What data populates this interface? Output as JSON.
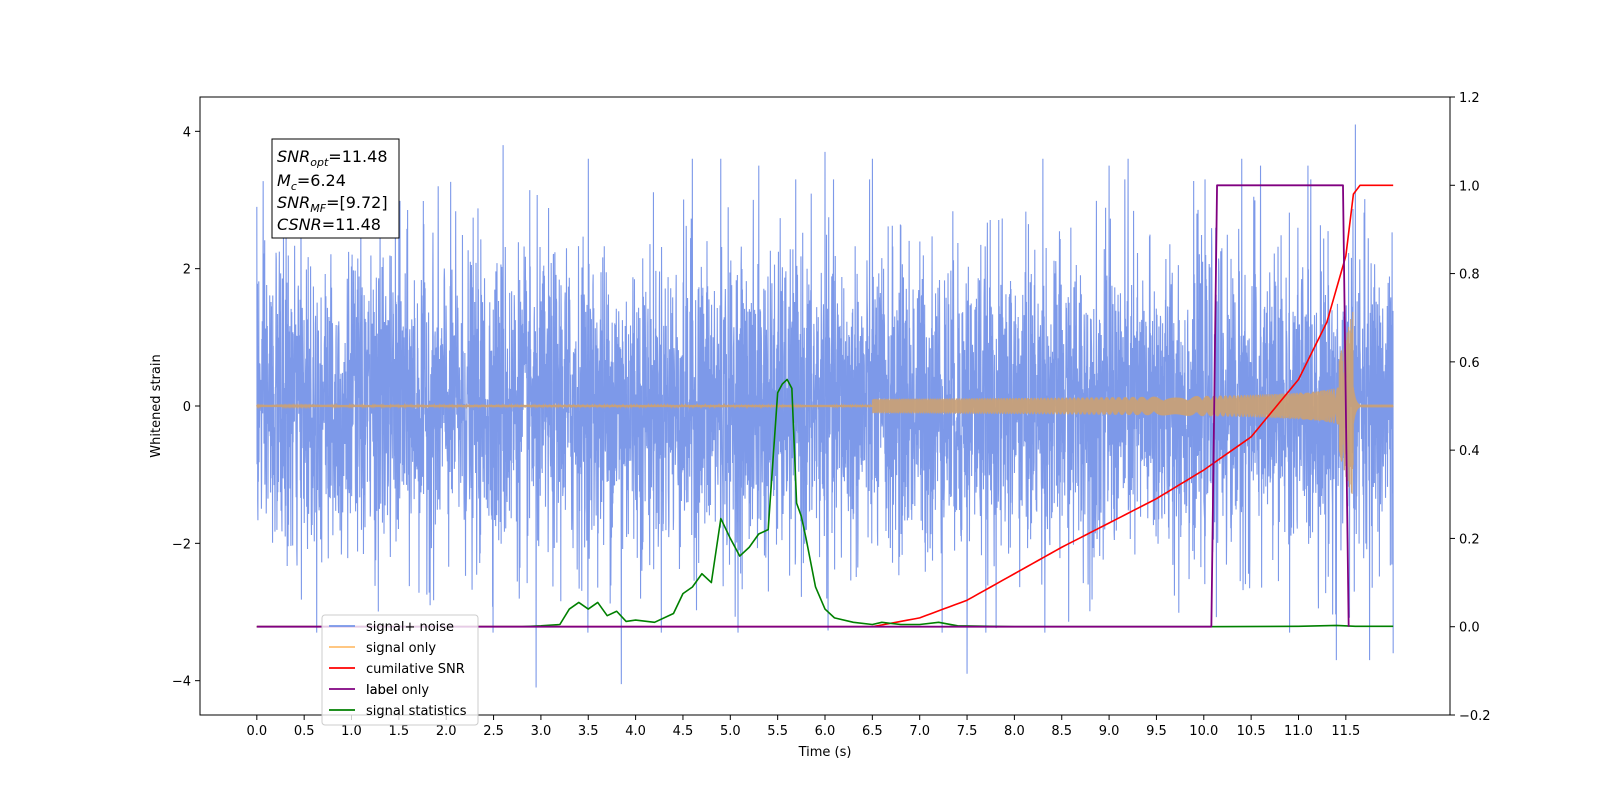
{
  "chart_data": {
    "type": "line",
    "xlabel": "Time (s)",
    "ylabel": "Whitened strain",
    "xlim": [
      -0.6,
      12.6
    ],
    "ylim": [
      -4.5,
      4.5
    ],
    "y2lim": [
      -0.2,
      1.2
    ],
    "x_ticks": [
      "0.0",
      "0.5",
      "1.0",
      "1.5",
      "2.0",
      "2.5",
      "3.0",
      "3.5",
      "4.0",
      "4.5",
      "5.0",
      "5.5",
      "6.0",
      "6.5",
      "7.0",
      "7.5",
      "8.0",
      "8.5",
      "9.0",
      "9.5",
      "10.0",
      "10.5",
      "11.0",
      "11.5"
    ],
    "y_ticks": [
      "−4",
      "−2",
      "0",
      "2",
      "4"
    ],
    "y2_ticks": [
      "−0.2",
      "0.0",
      "0.2",
      "0.4",
      "0.6",
      "0.8",
      "1.0",
      "1.2"
    ],
    "annotation": {
      "snr_opt": "=11.48",
      "mc": "=6.24",
      "snr_mf": "=[9.72]",
      "csnr": "=11.48"
    },
    "legend": {
      "placement": "lower-left",
      "entries": [
        "signal+ noise",
        "signal only",
        "cumilative SNR",
        "label",
        "signal statistics"
      ],
      "overlapped_text": "label only"
    },
    "series": [
      {
        "name": "signal+ noise",
        "axis": "left",
        "color": "#7694e8",
        "x_range": [
          0,
          12
        ],
        "noise_std": 1.0,
        "spikes": [
          [
            0.0,
            2.9
          ],
          [
            1.5,
            3.0
          ],
          [
            2.6,
            3.8
          ],
          [
            2.95,
            -4.1
          ],
          [
            3.5,
            3.6
          ],
          [
            3.85,
            -4.05
          ],
          [
            4.6,
            3.6
          ],
          [
            4.9,
            3.6
          ],
          [
            5.3,
            3.5
          ],
          [
            6.0,
            3.7
          ],
          [
            6.5,
            3.6
          ],
          [
            7.5,
            3.6
          ],
          [
            7.5,
            -3.9
          ],
          [
            8.3,
            3.6
          ],
          [
            9.0,
            3.5
          ],
          [
            9.2,
            3.6
          ],
          [
            10.4,
            3.6
          ],
          [
            10.6,
            3.5
          ],
          [
            11.1,
            3.5
          ],
          [
            11.4,
            -3.7
          ],
          [
            11.6,
            4.1
          ],
          [
            11.75,
            3.9
          ],
          [
            11.75,
            -3.7
          ],
          [
            12.0,
            -3.6
          ]
        ]
      },
      {
        "name": "signal only",
        "axis": "left",
        "color": "#c8a078",
        "chirp_start": 6.5,
        "merger": 11.58,
        "peak_amplitude": 1.4
      },
      {
        "name": "cumilative SNR",
        "axis": "right",
        "color": "#ff0000",
        "x": [
          0,
          6.5,
          7.0,
          7.5,
          8.0,
          8.5,
          9.0,
          9.5,
          10.0,
          10.5,
          11.0,
          11.3,
          11.5,
          11.58,
          11.65,
          12.0
        ],
        "y": [
          0,
          0,
          0.02,
          0.06,
          0.12,
          0.18,
          0.235,
          0.29,
          0.355,
          0.43,
          0.56,
          0.69,
          0.84,
          0.98,
          1.0,
          1.0
        ]
      },
      {
        "name": "label",
        "axis": "right",
        "color": "#800080",
        "x": [
          0,
          10.08,
          10.14,
          11.47,
          11.53
        ],
        "y": [
          0,
          0,
          1.0,
          1.0,
          0
        ]
      },
      {
        "name": "signal statistics",
        "axis": "right",
        "color": "#008000",
        "x": [
          0,
          2.8,
          3.0,
          3.2,
          3.3,
          3.4,
          3.5,
          3.6,
          3.7,
          3.8,
          3.9,
          4.0,
          4.2,
          4.4,
          4.5,
          4.6,
          4.7,
          4.8,
          4.9,
          5.0,
          5.1,
          5.2,
          5.3,
          5.4,
          5.5,
          5.55,
          5.6,
          5.65,
          5.7,
          5.75,
          5.8,
          5.9,
          6.0,
          6.1,
          6.3,
          6.5,
          6.6,
          6.8,
          7.0,
          7.2,
          7.4,
          8.0,
          9.0,
          10.0,
          11.0,
          11.4,
          11.6,
          12.0
        ],
        "y": [
          0,
          0,
          0.002,
          0.005,
          0.04,
          0.055,
          0.04,
          0.055,
          0.025,
          0.035,
          0.012,
          0.015,
          0.01,
          0.03,
          0.075,
          0.09,
          0.12,
          0.1,
          0.245,
          0.2,
          0.16,
          0.18,
          0.21,
          0.22,
          0.53,
          0.55,
          0.56,
          0.54,
          0.28,
          0.25,
          0.2,
          0.09,
          0.04,
          0.02,
          0.01,
          0.005,
          0.01,
          0.005,
          0.005,
          0.01,
          0.002,
          0.0,
          0.0,
          0.0,
          0.001,
          0.003,
          0.001,
          0.001
        ]
      }
    ]
  }
}
